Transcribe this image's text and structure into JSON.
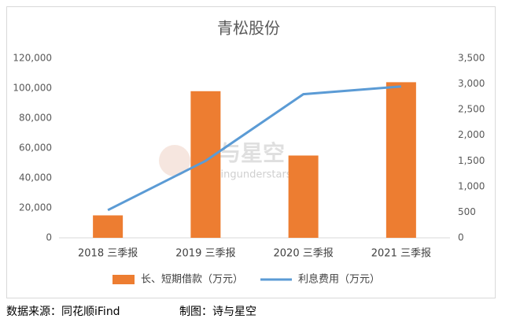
{
  "chart_data": {
    "type": "bar",
    "title": "青松股份",
    "categories": [
      "2018 三季报",
      "2019 三季报",
      "2020 三季报",
      "2021 三季报"
    ],
    "series": [
      {
        "name": "长、短期借款（万元）",
        "type": "bar",
        "color": "#ed7d31",
        "values": [
          15000,
          98000,
          55000,
          104000
        ]
      },
      {
        "name": "利息费用（万元）",
        "type": "line",
        "axis": "y2",
        "color": "#5b9bd5",
        "values": [
          540,
          1500,
          2800,
          2950
        ]
      }
    ],
    "ylim": [
      0,
      120000
    ],
    "yticks": [
      0,
      {
        "value": 20000,
        "label": "20,000"
      },
      {
        "value": 40000,
        "label": "40,000"
      },
      {
        "value": 60000,
        "label": "60,000"
      },
      {
        "value": 80000,
        "label": "80,000"
      },
      {
        "value": 100000,
        "label": "100,000"
      },
      {
        "value": 120000,
        "label": "120,000"
      }
    ],
    "y2lim": [
      0,
      3500
    ],
    "y2ticks": [
      0,
      500,
      {
        "value": 1000,
        "label": "1,000"
      },
      {
        "value": 1500,
        "label": "1,500"
      },
      {
        "value": 2000,
        "label": "2,000"
      },
      {
        "value": 2500,
        "label": "2,500"
      },
      {
        "value": 3000,
        "label": "3,000"
      },
      {
        "value": 3500,
        "label": "3,500"
      }
    ],
    "grid": false,
    "legend": "bottom"
  },
  "watermark": {
    "title": "诗与星空",
    "subtitle": "isingingunderstars"
  },
  "footer": {
    "source": "数据来源：同花顺iFind",
    "credit": "制图：诗与星空"
  }
}
